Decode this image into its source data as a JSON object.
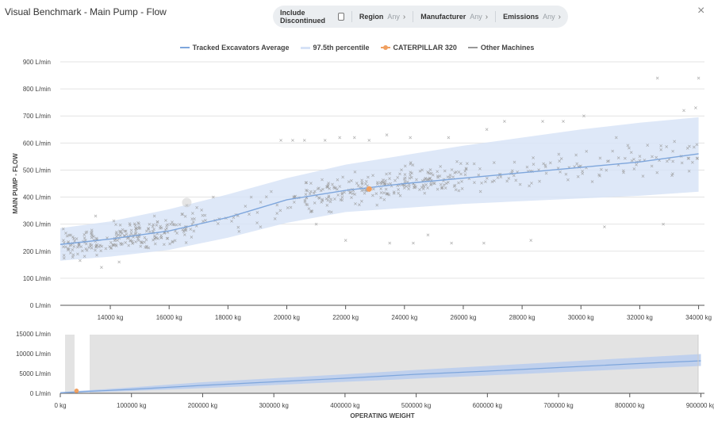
{
  "window": {
    "title": "Visual Benchmark - Main Pump - Flow",
    "close_label": "×"
  },
  "filters": [
    {
      "label": "Include Discontinued",
      "value": "",
      "kind": "checkbox"
    },
    {
      "label": "Region",
      "value": "Any",
      "kind": "dropdown"
    },
    {
      "label": "Manufacturer",
      "value": "Any",
      "kind": "dropdown"
    },
    {
      "label": "Emissions",
      "value": "Any",
      "kind": "dropdown"
    }
  ],
  "legend": [
    {
      "label": "Tracked Excavators Average",
      "color": "#7ea6dc",
      "marker": "line"
    },
    {
      "label": "97.5th percentile",
      "color": "#d6e2f6",
      "marker": "band"
    },
    {
      "label": "CATERPILLAR 320",
      "color": "#f0a060",
      "marker": "dot"
    },
    {
      "label": "Other Machines",
      "color": "#999999",
      "marker": "line"
    }
  ],
  "chart_data": [
    {
      "type": "scatter",
      "ylabel": "MAIN PUMP - FLOW",
      "xlabel": "",
      "y_unit": "L/min",
      "x_unit": "kg",
      "xlim": [
        12300,
        34200
      ],
      "ylim": [
        0,
        900
      ],
      "yticks": [
        "0 L/min",
        "100 L/min",
        "200 L/min",
        "300 L/min",
        "400 L/min",
        "500 L/min",
        "600 L/min",
        "700 L/min",
        "800 L/min",
        "900 L/min"
      ],
      "xticks": [
        "14000 kg",
        "16000 kg",
        "18000 kg",
        "20000 kg",
        "22000 kg",
        "24000 kg",
        "26000 kg",
        "28000 kg",
        "30000 kg",
        "32000 kg",
        "34000 kg"
      ],
      "grid": true,
      "average": {
        "name": "Tracked Excavators Average",
        "x": [
          12300,
          14000,
          16000,
          18000,
          20000,
          22000,
          24000,
          26000,
          28000,
          30000,
          32000,
          34000
        ],
        "y": [
          225,
          245,
          275,
          325,
          390,
          425,
          450,
          470,
          490,
          510,
          530,
          560
        ]
      },
      "band": {
        "name": "97.5th percentile",
        "x": [
          12300,
          14000,
          16000,
          18000,
          20000,
          22000,
          24000,
          26000,
          28000,
          30000,
          32000,
          34000
        ],
        "lower": [
          165,
          180,
          205,
          250,
          305,
          345,
          360,
          375,
          385,
          395,
          405,
          420
        ],
        "upper": [
          285,
          310,
          355,
          410,
          470,
          520,
          555,
          590,
          620,
          650,
          675,
          695
        ]
      },
      "highlight": {
        "name": "CATERPILLAR 320",
        "x": 22800,
        "y": 430
      },
      "other_machines": [
        [
          13500,
          330
        ],
        [
          13700,
          140
        ],
        [
          14300,
          160
        ],
        [
          15500,
          330
        ],
        [
          16600,
          370
        ],
        [
          16800,
          340
        ],
        [
          17500,
          400
        ],
        [
          19800,
          610
        ],
        [
          20200,
          610
        ],
        [
          20600,
          610
        ],
        [
          21300,
          610
        ],
        [
          21800,
          620
        ],
        [
          22300,
          620
        ],
        [
          22800,
          610
        ],
        [
          23400,
          630
        ],
        [
          24200,
          620
        ],
        [
          25500,
          620
        ],
        [
          26800,
          650
        ],
        [
          27400,
          680
        ],
        [
          28700,
          680
        ],
        [
          29400,
          680
        ],
        [
          30100,
          700
        ],
        [
          31200,
          620
        ],
        [
          32600,
          840
        ],
        [
          33500,
          720
        ],
        [
          34000,
          840
        ],
        [
          33900,
          730
        ],
        [
          22000,
          240
        ],
        [
          23500,
          230
        ],
        [
          24300,
          230
        ],
        [
          25600,
          230
        ],
        [
          26700,
          230
        ],
        [
          28300,
          240
        ],
        [
          30800,
          290
        ],
        [
          32800,
          300
        ],
        [
          21000,
          300
        ],
        [
          19600,
          320
        ],
        [
          24800,
          260
        ],
        [
          33000,
          540
        ],
        [
          31800,
          540
        ]
      ]
    },
    {
      "type": "line",
      "xlabel": "OPERATING WEIGHT",
      "ylabel": "",
      "xlim": [
        0,
        905000
      ],
      "ylim": [
        0,
        15000
      ],
      "yticks": [
        "0 L/min",
        "5000 L/min",
        "10000 L/min",
        "15000 L/min"
      ],
      "xticks": [
        "0 kg",
        "100000 kg",
        "200000 kg",
        "300000 kg",
        "400000 kg",
        "500000 kg",
        "600000 kg",
        "700000 kg",
        "800000 kg",
        "900000 kg"
      ],
      "selected_range": [
        12300,
        34200
      ],
      "average": {
        "x": [
          0,
          100000,
          200000,
          300000,
          400000,
          500000,
          600000,
          700000,
          800000,
          900000
        ],
        "y": [
          150,
          1000,
          2000,
          2900,
          3800,
          4800,
          5600,
          6500,
          7400,
          8200
        ]
      },
      "band": {
        "x": [
          0,
          100000,
          200000,
          300000,
          400000,
          500000,
          600000,
          700000,
          800000,
          900000
        ],
        "lower": [
          0,
          600,
          1300,
          2100,
          2900,
          3700,
          4500,
          5300,
          6100,
          6900
        ],
        "upper": [
          300,
          1500,
          2800,
          3800,
          4800,
          5900,
          6900,
          7900,
          8900,
          9900
        ]
      },
      "highlight": {
        "x": 22800,
        "y": 430
      }
    }
  ]
}
